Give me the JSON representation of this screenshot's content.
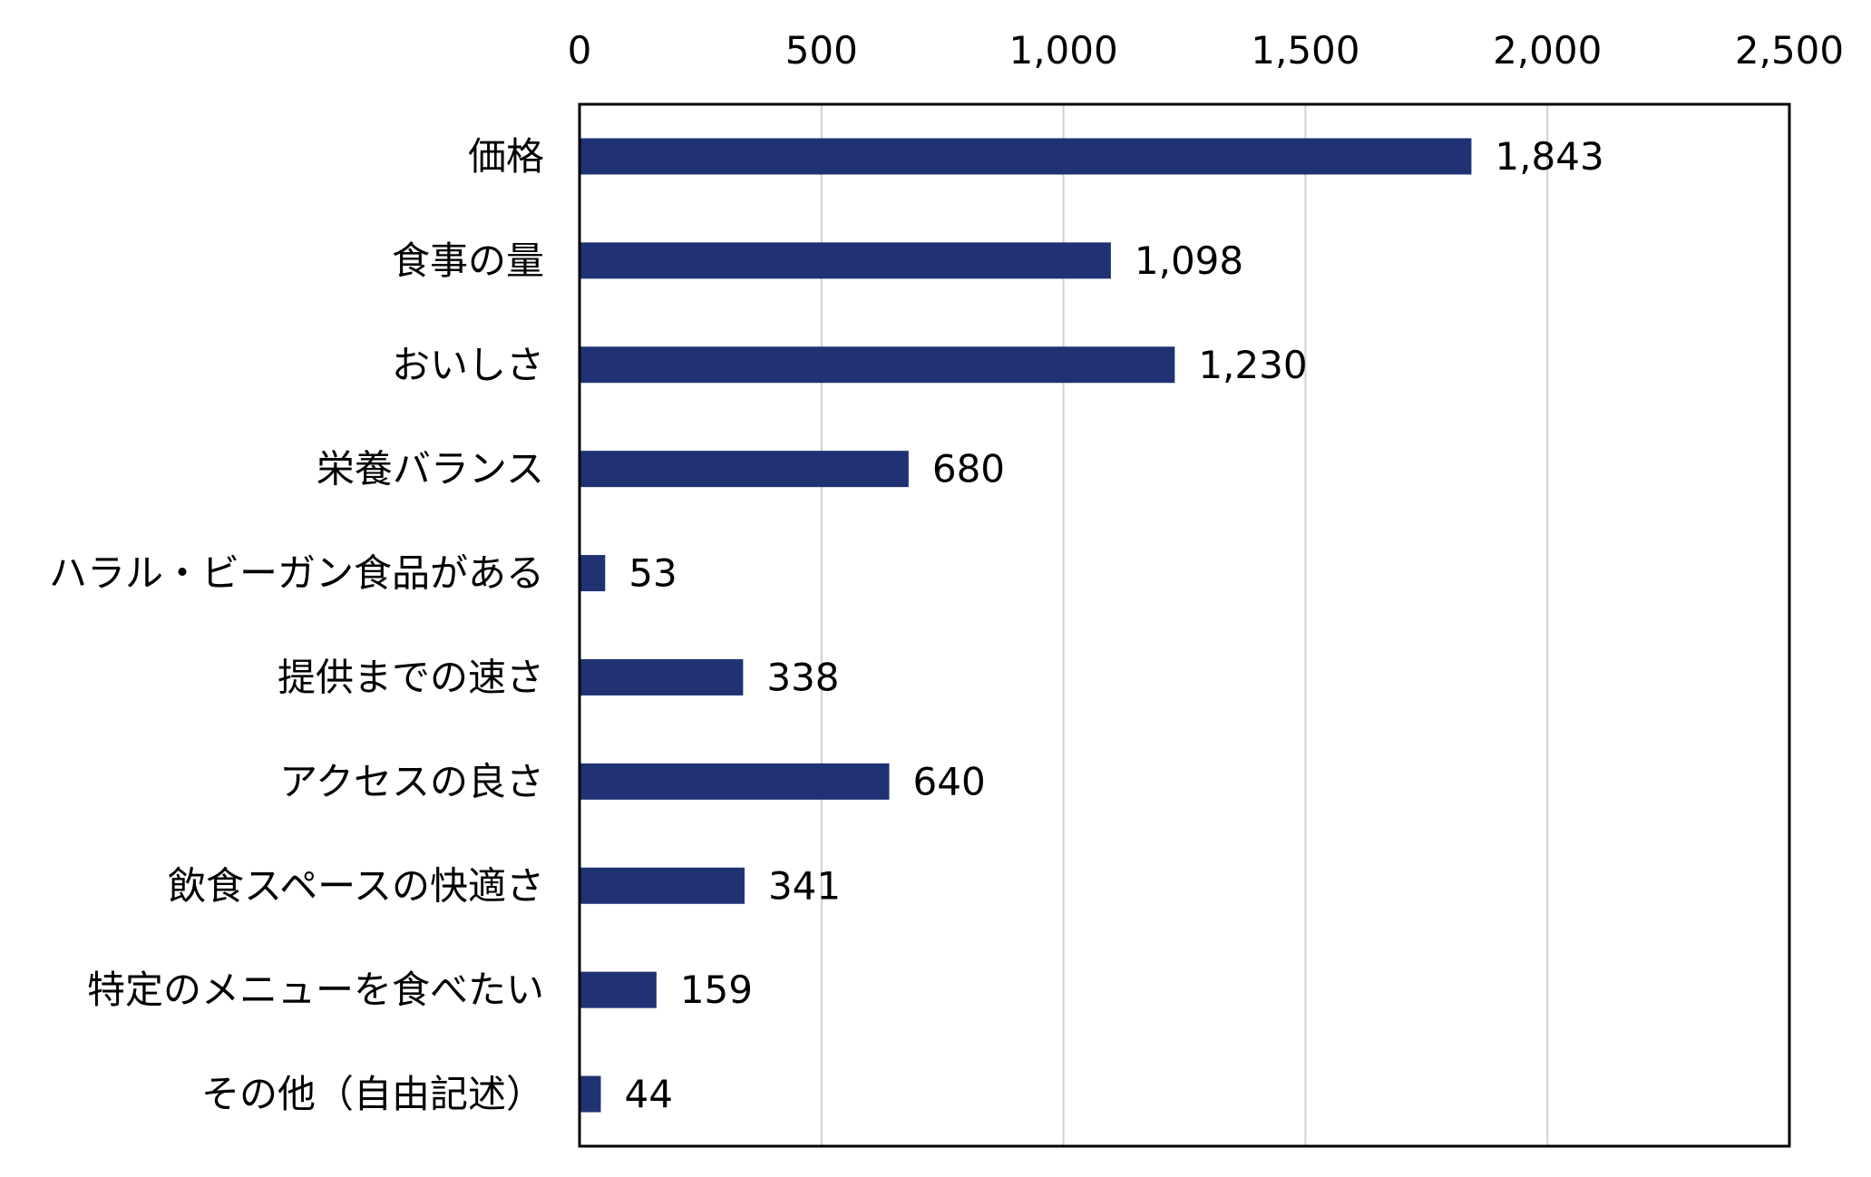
{
  "chart_data": {
    "type": "bar",
    "orientation": "horizontal",
    "title": "",
    "xlabel": "",
    "ylabel": "",
    "xlim": [
      0,
      2500
    ],
    "x_ticks": [
      "0",
      "500",
      "1,000",
      "1,500",
      "2,000",
      "2,500"
    ],
    "x_tick_values": [
      0,
      500,
      1000,
      1500,
      2000,
      2500
    ],
    "x_axis_position": "top",
    "grid": true,
    "bar_color": "#1f3273",
    "categories": [
      "価格",
      "食事の量",
      "おいしさ",
      "栄養バランス",
      "ハラル・ビーガン食品がある",
      "提供までの速さ",
      "アクセスの良さ",
      "飲食スペースの快適さ",
      "特定のメニューを食べたい",
      "その他（自由記述）"
    ],
    "values": [
      1843,
      1098,
      1230,
      680,
      53,
      338,
      640,
      341,
      159,
      44
    ],
    "value_labels": [
      "1,843",
      "1,098",
      "1,230",
      "680",
      "53",
      "338",
      "640",
      "341",
      "159",
      "44"
    ]
  }
}
